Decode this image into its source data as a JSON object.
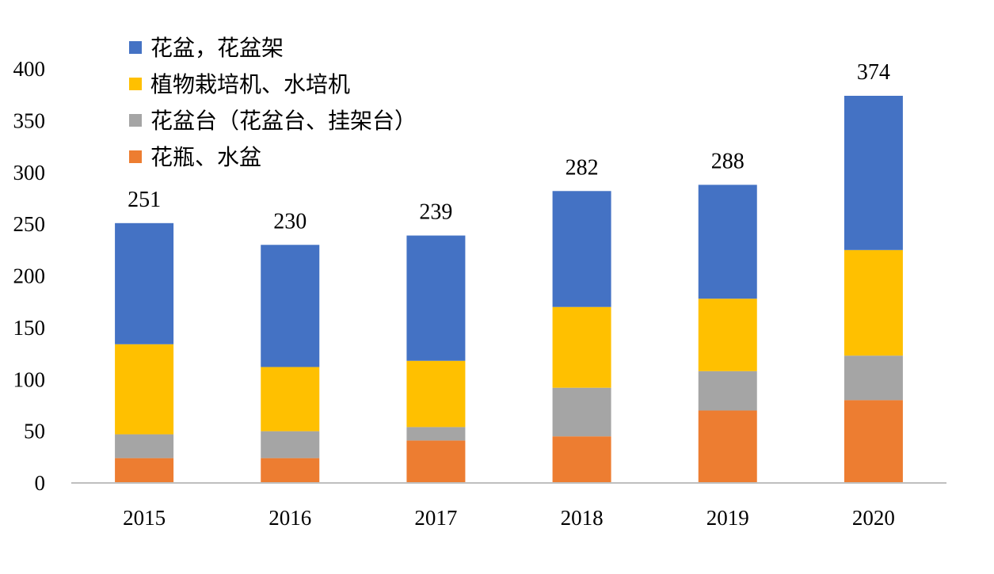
{
  "chart_data": {
    "type": "bar",
    "stacked": true,
    "categories": [
      "2015",
      "2016",
      "2017",
      "2018",
      "2019",
      "2020"
    ],
    "series": [
      {
        "name": "花瓶、水盆",
        "color": "#ED7D31",
        "values": [
          24,
          24,
          41,
          45,
          70,
          80
        ]
      },
      {
        "name": "花盆台（花盆台、挂架台）",
        "color": "#A5A5A5",
        "values": [
          23,
          26,
          13,
          47,
          38,
          43
        ]
      },
      {
        "name": "植物栽培机、水培机",
        "color": "#FFC000",
        "values": [
          87,
          62,
          64,
          78,
          70,
          102
        ]
      },
      {
        "name": "花盆，花盆架",
        "color": "#4472C4",
        "values": [
          117,
          118,
          121,
          112,
          110,
          149
        ]
      }
    ],
    "totals": [
      "251",
      "230",
      "239",
      "282",
      "288",
      "374"
    ],
    "ylim": [
      0,
      400
    ],
    "yticks": [
      "0",
      "50",
      "100",
      "150",
      "200",
      "250",
      "300",
      "350",
      "400"
    ],
    "grid": false,
    "legend_position": "top-left",
    "legend_order": [
      "花盆，花盆架",
      "植物栽培机、水培机",
      "花盆台（花盆台、挂架台）",
      "花瓶、水盆"
    ],
    "title": "",
    "xlabel": "",
    "ylabel": ""
  }
}
